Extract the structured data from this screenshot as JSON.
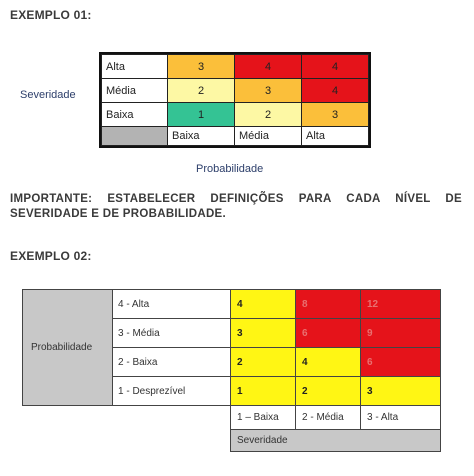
{
  "example1": {
    "heading": "EXEMPLO 01:",
    "severity_label": "Severidade",
    "probability_label": "Probabilidade",
    "rows": [
      {
        "label": "Alta",
        "cells": [
          {
            "value": "3",
            "color": "#fbbf3a"
          },
          {
            "value": "4",
            "color": "#e5131a"
          },
          {
            "value": "4",
            "color": "#e5131a"
          }
        ]
      },
      {
        "label": "Média",
        "cells": [
          {
            "value": "2",
            "color": "#fdf8a4"
          },
          {
            "value": "3",
            "color": "#fbbf3a"
          },
          {
            "value": "4",
            "color": "#e5131a"
          }
        ]
      },
      {
        "label": "Baixa",
        "cells": [
          {
            "value": "1",
            "color": "#34c394"
          },
          {
            "value": "2",
            "color": "#fdf8a4"
          },
          {
            "value": "3",
            "color": "#fbbf3a"
          }
        ]
      }
    ],
    "columns": [
      "Baixa",
      "Média",
      "Alta"
    ]
  },
  "note": "IMPORTANTE: ESTABELECER DEFINIÇÕES PARA CADA NÍVEL DE SEVERIDADE E DE PROBABILIDADE.",
  "example2": {
    "heading": "EXEMPLO 02:",
    "probability_label": "Probabilidade",
    "severity_label": "Severidade",
    "rows": [
      {
        "label": "4 - Alta",
        "cells": [
          {
            "value": "4",
            "color": "#fff614"
          },
          {
            "value": "8",
            "color": "#e5131a"
          },
          {
            "value": "12",
            "color": "#e5131a"
          }
        ]
      },
      {
        "label": "3 - Média",
        "cells": [
          {
            "value": "3",
            "color": "#fff614"
          },
          {
            "value": "6",
            "color": "#e5131a"
          },
          {
            "value": "9",
            "color": "#e5131a"
          }
        ]
      },
      {
        "label": "2 - Baixa",
        "cells": [
          {
            "value": "2",
            "color": "#fff614"
          },
          {
            "value": "4",
            "color": "#fff614"
          },
          {
            "value": "6",
            "color": "#e5131a"
          }
        ]
      },
      {
        "label": "1 - Desprezível",
        "cells": [
          {
            "value": "1",
            "color": "#fff614"
          },
          {
            "value": "2",
            "color": "#fff614"
          },
          {
            "value": "3",
            "color": "#fff614"
          }
        ]
      }
    ],
    "columns": [
      "1 – Baixa",
      "2 - Média",
      "3 - Alta"
    ]
  }
}
